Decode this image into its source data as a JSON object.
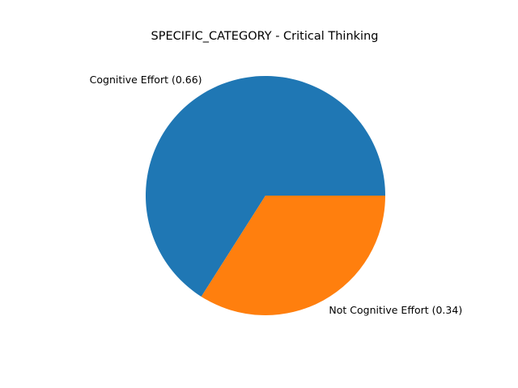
{
  "chart_data": {
    "type": "pie",
    "title": "SPECIFIC_CATEGORY - Critical Thinking",
    "slices": [
      {
        "label": "Cognitive Effort (0.66)",
        "value": 0.66,
        "color": "#1f77b4"
      },
      {
        "label": "Not Cognitive Effort (0.34)",
        "value": 0.34,
        "color": "#ff7f0e"
      }
    ],
    "start_angle_deg": 0,
    "direction": "counterclockwise"
  }
}
